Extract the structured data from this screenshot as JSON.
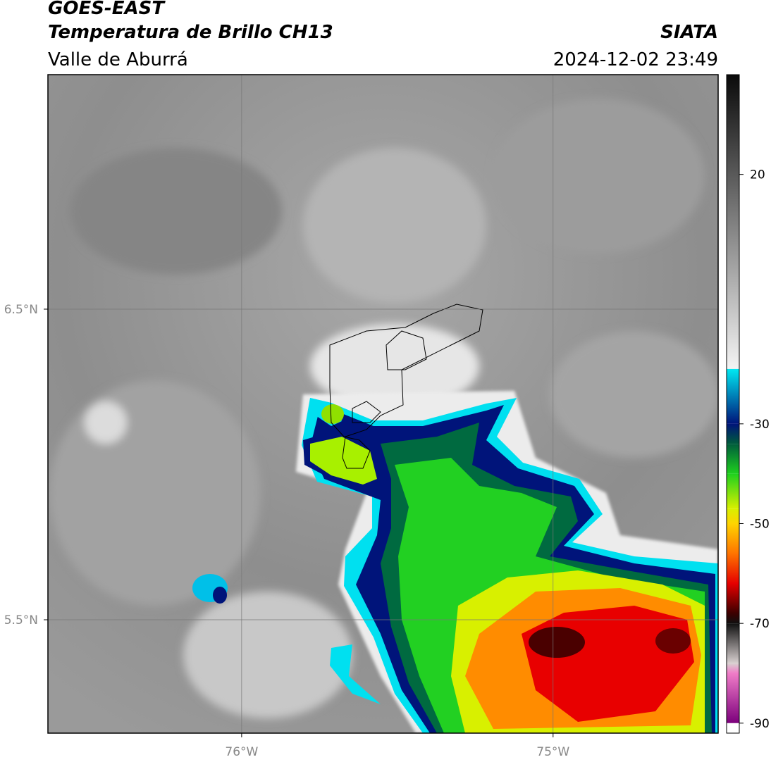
{
  "header": {
    "title": "GOES-EAST",
    "subtitle": "Temperatura de Brillo CH13",
    "region": "Valle de Aburrá",
    "source": "SIATA",
    "datetime": "2024-12-02 23:49"
  },
  "map": {
    "xlim": [
      -76.622,
      -74.47
    ],
    "ylim": [
      5.135,
      7.255
    ],
    "xticks": [
      {
        "value": -76,
        "label": "76°W"
      },
      {
        "value": -75,
        "label": "75°W"
      }
    ],
    "yticks": [
      {
        "value": 6.5,
        "label": "6.5°N"
      },
      {
        "value": 5.5,
        "label": "5.5°N"
      }
    ],
    "grid": true
  },
  "colorbar": {
    "lim": [
      -92,
      40
    ],
    "ticks": [
      20,
      -30,
      -50,
      -70,
      -90
    ],
    "stops": [
      {
        "value": 40,
        "color": "#0a0a0a"
      },
      {
        "value": -19,
        "color": "#f4f4f4"
      },
      {
        "value": -19,
        "color": "#00e8f2"
      },
      {
        "value": -30,
        "color": "#00147a"
      },
      {
        "value": -34,
        "color": "#005c3c"
      },
      {
        "value": -40,
        "color": "#1ed01e"
      },
      {
        "value": -47,
        "color": "#d8f000"
      },
      {
        "value": -50,
        "color": "#ffd400"
      },
      {
        "value": -56,
        "color": "#ff7400"
      },
      {
        "value": -62,
        "color": "#e60000"
      },
      {
        "value": -68,
        "color": "#3c0000"
      },
      {
        "value": -70,
        "color": "#101010"
      },
      {
        "value": -78,
        "color": "#d8d0d0"
      },
      {
        "value": -80,
        "color": "#f07cc8"
      },
      {
        "value": -90,
        "color": "#7c007c"
      },
      {
        "value": -90,
        "color": "#ffffff"
      },
      {
        "value": -92,
        "color": "#ffffff"
      }
    ]
  }
}
